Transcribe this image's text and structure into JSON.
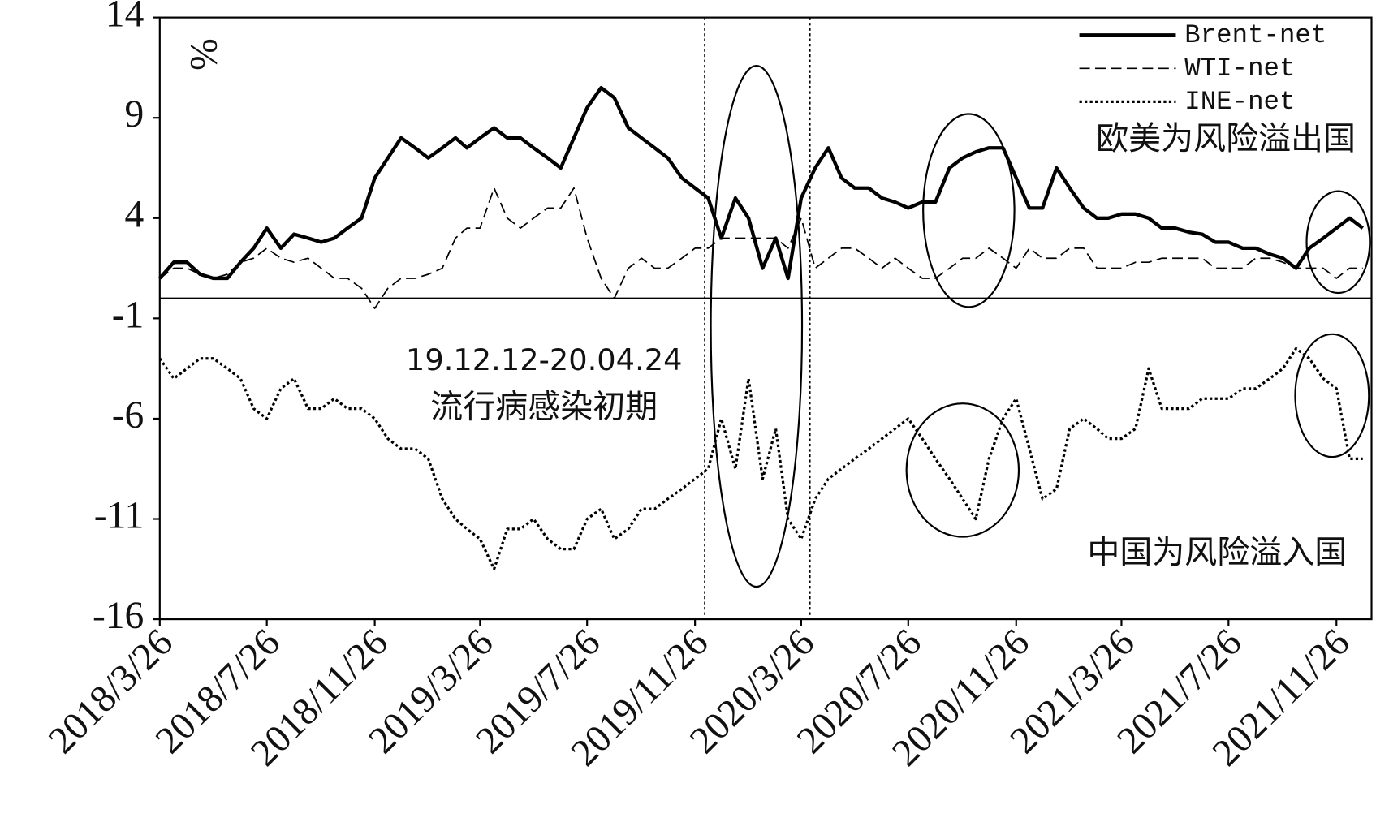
{
  "chart_data": {
    "type": "line",
    "y_unit": "%",
    "annotations": [
      "19.12.12-20.04.24",
      "流行病感染初期",
      "欧美为风险溢出国",
      "中国为风险溢入国"
    ],
    "x": [
      "2018-03-26",
      "2018-04-11",
      "2018-04-26",
      "2018-05-11",
      "2018-05-26",
      "2018-06-11",
      "2018-06-26",
      "2018-07-11",
      "2018-07-26",
      "2018-08-11",
      "2018-08-26",
      "2018-09-11",
      "2018-09-26",
      "2018-10-11",
      "2018-10-26",
      "2018-11-11",
      "2018-11-26",
      "2018-12-11",
      "2018-12-26",
      "2019-01-11",
      "2019-01-26",
      "2019-02-11",
      "2019-02-26",
      "2019-03-11",
      "2019-03-26",
      "2019-04-11",
      "2019-04-26",
      "2019-05-11",
      "2019-05-26",
      "2019-06-11",
      "2019-06-26",
      "2019-07-11",
      "2019-07-26",
      "2019-08-11",
      "2019-08-26",
      "2019-09-11",
      "2019-09-26",
      "2019-10-11",
      "2019-10-26",
      "2019-11-11",
      "2019-11-26",
      "2019-12-11",
      "2019-12-26",
      "2020-01-11",
      "2020-01-26",
      "2020-02-11",
      "2020-02-26",
      "2020-03-11",
      "2020-03-26",
      "2020-04-11",
      "2020-04-26",
      "2020-05-11",
      "2020-05-26",
      "2020-06-11",
      "2020-06-26",
      "2020-07-11",
      "2020-07-26",
      "2020-08-11",
      "2020-08-26",
      "2020-09-11",
      "2020-09-26",
      "2020-10-11",
      "2020-10-26",
      "2020-11-11",
      "2020-11-26",
      "2020-12-11",
      "2020-12-26",
      "2021-01-11",
      "2021-01-26",
      "2021-02-11",
      "2021-02-26",
      "2021-03-11",
      "2021-03-26",
      "2021-04-11",
      "2021-04-26",
      "2021-05-11",
      "2021-05-26",
      "2021-06-11",
      "2021-06-26",
      "2021-07-11",
      "2021-07-26",
      "2021-08-11",
      "2021-08-26",
      "2021-09-11",
      "2021-09-26",
      "2021-10-11",
      "2021-10-26",
      "2021-11-11",
      "2021-11-26",
      "2021-12-11",
      "2021-12-26"
    ],
    "series": [
      {
        "name": "Brent-net",
        "color": "#000000",
        "style": "solid",
        "values": [
          1.0,
          1.8,
          1.8,
          1.2,
          1.0,
          1.0,
          1.8,
          2.5,
          3.5,
          2.5,
          3.2,
          3.0,
          2.8,
          3.0,
          3.5,
          4.0,
          6.0,
          7.0,
          8.0,
          7.5,
          7.0,
          7.5,
          8.0,
          7.5,
          8.0,
          8.5,
          8.0,
          8.0,
          7.5,
          7.0,
          6.5,
          8.0,
          9.5,
          10.5,
          10.0,
          8.5,
          8.0,
          7.5,
          7.0,
          6.0,
          5.5,
          5.0,
          3.0,
          5.0,
          4.0,
          1.5,
          3.0,
          1.0,
          5.0,
          6.5,
          7.5,
          6.0,
          5.5,
          5.5,
          5.0,
          4.8,
          4.5,
          4.8,
          4.8,
          6.5,
          7.0,
          7.3,
          7.5,
          7.5,
          6.0,
          4.5,
          4.5,
          6.5,
          5.5,
          4.5,
          4.0,
          4.0,
          4.2,
          4.2,
          4.0,
          3.5,
          3.5,
          3.3,
          3.2,
          2.8,
          2.8,
          2.5,
          2.5,
          2.2,
          2.0,
          1.5,
          2.5,
          3.0,
          3.5,
          4.0,
          3.5
        ]
      },
      {
        "name": "WTI-net",
        "color": "#000000",
        "style": "dashed",
        "values": [
          1.0,
          1.5,
          1.5,
          1.2,
          1.0,
          1.2,
          1.8,
          2.0,
          2.5,
          2.0,
          1.8,
          2.0,
          1.5,
          1.0,
          1.0,
          0.5,
          -0.5,
          0.5,
          1.0,
          1.0,
          1.2,
          1.5,
          3.0,
          3.5,
          3.5,
          5.5,
          4.0,
          3.5,
          4.0,
          4.5,
          4.5,
          5.5,
          3.0,
          1.0,
          0.0,
          1.5,
          2.0,
          1.5,
          1.5,
          2.0,
          2.5,
          2.5,
          3.0,
          3.0,
          3.0,
          3.0,
          3.0,
          2.5,
          4.0,
          1.5,
          2.0,
          2.5,
          2.5,
          2.0,
          1.5,
          2.0,
          1.5,
          1.0,
          1.0,
          1.5,
          2.0,
          2.0,
          2.5,
          2.0,
          1.5,
          2.5,
          2.0,
          2.0,
          2.5,
          2.5,
          1.5,
          1.5,
          1.5,
          1.8,
          1.8,
          2.0,
          2.0,
          2.0,
          2.0,
          1.5,
          1.5,
          1.5,
          2.0,
          2.0,
          1.8,
          1.5,
          1.5,
          1.5,
          1.0,
          1.5,
          1.5
        ]
      },
      {
        "name": "INE-net",
        "color": "#000000",
        "style": "dotted",
        "values": [
          -3.0,
          -4.0,
          -3.5,
          -3.0,
          -3.0,
          -3.5,
          -4.0,
          -5.5,
          -6.0,
          -4.5,
          -4.0,
          -5.5,
          -5.5,
          -5.0,
          -5.5,
          -5.5,
          -6.0,
          -7.0,
          -7.5,
          -7.5,
          -8.0,
          -10.0,
          -11.0,
          -11.5,
          -12.0,
          -13.5,
          -11.5,
          -11.5,
          -11.0,
          -12.0,
          -12.5,
          -12.5,
          -11.0,
          -10.5,
          -12.0,
          -11.5,
          -10.5,
          -10.5,
          -10.0,
          -9.5,
          -9.0,
          -8.5,
          -6.0,
          -8.5,
          -4.0,
          -9.0,
          -6.5,
          -11.0,
          -12.0,
          -10.0,
          -9.0,
          -8.5,
          -8.0,
          -7.5,
          -7.0,
          -6.5,
          -6.0,
          -7.0,
          -8.0,
          -9.0,
          -10.0,
          -11.0,
          -8.0,
          -6.0,
          -5.0,
          -7.5,
          -10.0,
          -9.5,
          -6.5,
          -6.0,
          -6.5,
          -7.0,
          -7.0,
          -6.5,
          -3.5,
          -5.5,
          -5.5,
          -5.5,
          -5.0,
          -5.0,
          -5.0,
          -4.5,
          -4.5,
          -4.0,
          -3.5,
          -2.5,
          -3.0,
          -4.0,
          -4.5,
          -8.0,
          -8.0
        ]
      }
    ],
    "xlim": [
      "2018-03-26",
      "2022-01-05"
    ],
    "xticks": [
      {
        "value": "2018-03-26",
        "label": "2018/3/26"
      },
      {
        "value": "2018-07-26",
        "label": "2018/7/26"
      },
      {
        "value": "2018-11-26",
        "label": "2018/11/26"
      },
      {
        "value": "2019-03-26",
        "label": "2019/3/26"
      },
      {
        "value": "2019-07-26",
        "label": "2019/7/26"
      },
      {
        "value": "2019-11-26",
        "label": "2019/11/26"
      },
      {
        "value": "2020-03-26",
        "label": "2020/3/26"
      },
      {
        "value": "2020-07-26",
        "label": "2020/7/26"
      },
      {
        "value": "2020-11-26",
        "label": "2020/11/26"
      },
      {
        "value": "2021-03-26",
        "label": "2021/3/26"
      },
      {
        "value": "2021-07-26",
        "label": "2021/7/26"
      },
      {
        "value": "2021-11-26",
        "label": "2021/11/26"
      }
    ],
    "ylim": [
      -16,
      14
    ],
    "yticks": [
      -16,
      -11,
      -6,
      -1,
      4,
      9,
      14
    ],
    "legend": "upper right"
  }
}
